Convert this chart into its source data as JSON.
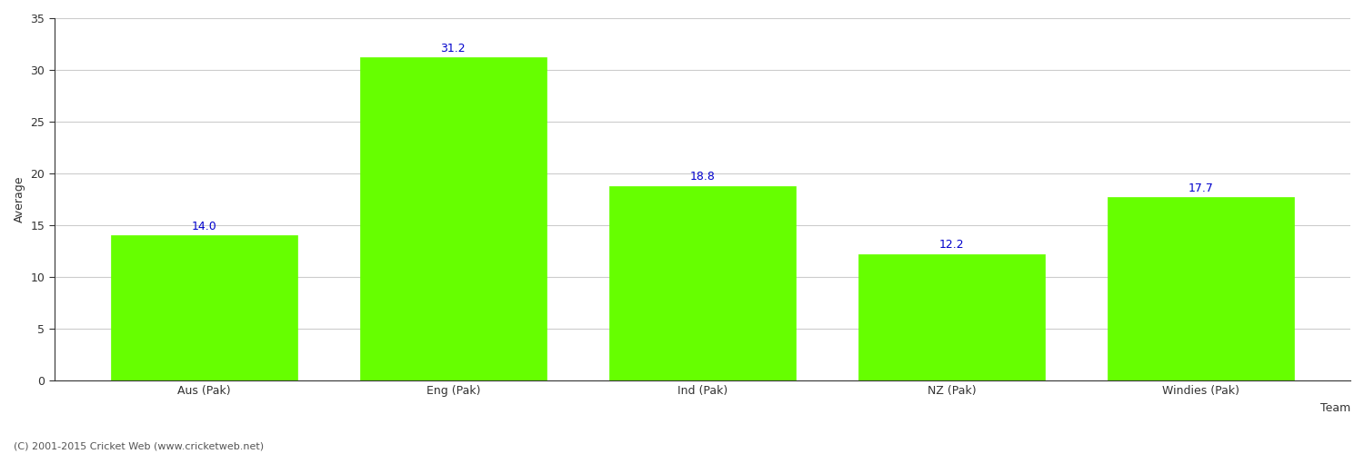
{
  "categories": [
    "Aus (Pak)",
    "Eng (Pak)",
    "Ind (Pak)",
    "NZ (Pak)",
    "Windies (Pak)"
  ],
  "values": [
    14.0,
    31.2,
    18.8,
    12.2,
    17.7
  ],
  "bar_color": "#66ff00",
  "bar_edge_color": "#66ff00",
  "value_label_color": "#0000cc",
  "value_label_fontsize": 9,
  "xlabel": "Team",
  "ylabel": "Average",
  "ylim": [
    0,
    35
  ],
  "yticks": [
    0,
    5,
    10,
    15,
    20,
    25,
    30,
    35
  ],
  "grid_color": "#cccccc",
  "background_color": "#ffffff",
  "axis_color": "#333333",
  "tick_color": "#333333",
  "tick_fontsize": 9,
  "xlabel_fontsize": 9,
  "ylabel_fontsize": 9,
  "footer_text": "(C) 2001-2015 Cricket Web (www.cricketweb.net)",
  "footer_fontsize": 8,
  "footer_color": "#555555",
  "bar_width": 0.75
}
